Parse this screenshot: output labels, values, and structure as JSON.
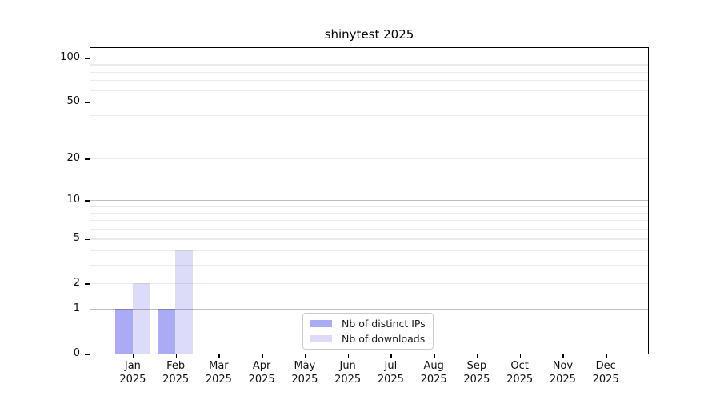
{
  "chart_data": {
    "type": "bar",
    "title": "shinytest 2025",
    "categories": [
      "Jan",
      "Feb",
      "Mar",
      "Apr",
      "May",
      "Jun",
      "Jul",
      "Aug",
      "Sep",
      "Oct",
      "Nov",
      "Dec"
    ],
    "category_year": "2025",
    "series": [
      {
        "name": "Nb of distinct IPs",
        "color": "#ababf5",
        "values": [
          1,
          1,
          0,
          0,
          0,
          0,
          0,
          0,
          0,
          0,
          0,
          0
        ]
      },
      {
        "name": "Nb of downloads",
        "color": "#dcdcf8",
        "values": [
          2,
          4,
          0,
          0,
          0,
          0,
          0,
          0,
          0,
          0,
          0,
          0
        ]
      }
    ],
    "y_axis": {
      "scale": "log1p",
      "tick_values": [
        0,
        1,
        2,
        5,
        10,
        20,
        50,
        100
      ],
      "major_grid_values": [
        1,
        10,
        100
      ],
      "minor_grid_values": [
        2,
        3,
        4,
        5,
        6,
        7,
        8,
        9,
        20,
        30,
        40,
        50,
        60,
        70,
        80,
        90
      ]
    },
    "legend": {
      "position": "bottom-center",
      "entries": [
        "Nb of distinct IPs",
        "Nb of downloads"
      ]
    },
    "grid": true,
    "colors": {
      "major_grid": "#c0c0c0",
      "minor_grid": "#ebebeb",
      "axis": "#000000",
      "background": "#ffffff"
    }
  }
}
